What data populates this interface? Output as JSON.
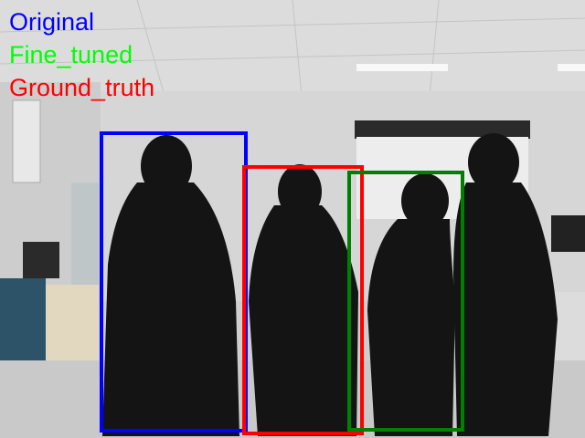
{
  "legend": {
    "items": [
      {
        "label": "Original",
        "color": "#0000ff"
      },
      {
        "label": "Fine_tuned",
        "color": "#00ff00"
      },
      {
        "label": "Ground_truth",
        "color": "#ff0000"
      }
    ]
  },
  "boxes": [
    {
      "id": "original",
      "color": "#0000ff"
    },
    {
      "id": "fine_tuned",
      "color": "#008000"
    },
    {
      "id": "ground_truth",
      "color": "#ff0000"
    }
  ],
  "scene": {
    "description_icons": [
      "person-silhouette",
      "ceiling-light",
      "projector-screen",
      "door",
      "cabinet"
    ]
  }
}
